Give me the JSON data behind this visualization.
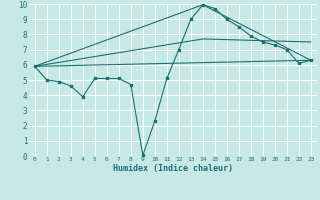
{
  "xlabel": "Humidex (Indice chaleur)",
  "bg_color": "#c8e8e8",
  "grid_color": "#ffffff",
  "line_color": "#1a7070",
  "xlim": [
    -0.5,
    23.5
  ],
  "ylim": [
    0,
    10
  ],
  "xticks": [
    0,
    1,
    2,
    3,
    4,
    5,
    6,
    7,
    8,
    9,
    10,
    11,
    12,
    13,
    14,
    15,
    16,
    17,
    18,
    19,
    20,
    21,
    22,
    23
  ],
  "yticks": [
    0,
    1,
    2,
    3,
    4,
    5,
    6,
    7,
    8,
    9,
    10
  ],
  "line1_x": [
    0,
    1,
    2,
    3,
    4,
    5,
    6,
    7,
    8,
    9,
    10,
    11,
    12,
    13,
    14,
    15,
    16,
    17,
    18,
    19,
    20,
    21,
    22,
    23
  ],
  "line1_y": [
    5.9,
    5.0,
    4.9,
    4.6,
    3.9,
    5.1,
    5.1,
    5.1,
    4.7,
    0.05,
    2.3,
    5.1,
    7.0,
    9.0,
    9.95,
    9.7,
    9.0,
    8.5,
    7.9,
    7.5,
    7.3,
    7.0,
    6.1,
    6.3
  ],
  "line2_x": [
    0,
    23
  ],
  "line2_y": [
    5.9,
    6.3
  ],
  "line3_x": [
    0,
    14,
    23
  ],
  "line3_y": [
    5.9,
    9.95,
    6.3
  ],
  "line4_x": [
    0,
    14,
    23
  ],
  "line4_y": [
    5.9,
    7.7,
    7.5
  ]
}
